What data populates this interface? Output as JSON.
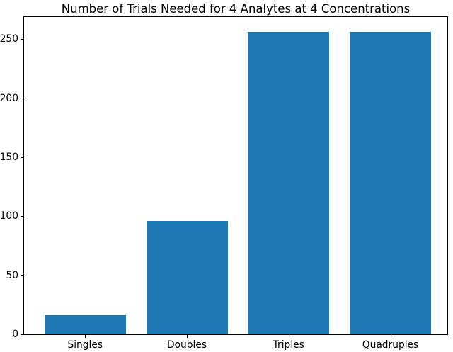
{
  "figure": {
    "background": "#ffffff"
  },
  "chart_data": {
    "type": "bar",
    "title": "Number of Trials Needed for 4 Analytes at 4 Concentrations",
    "categories": [
      "Singles",
      "Doubles",
      "Triples",
      "Quadruples"
    ],
    "values": [
      16,
      96,
      256,
      256
    ],
    "xlabel": "",
    "ylabel": "",
    "yticks": [
      0,
      50,
      100,
      150,
      200,
      250
    ],
    "ylim": [
      0,
      268.8
    ],
    "xlim": [
      -0.6,
      3.56
    ],
    "bar_width": 0.8,
    "bar_color": "#1f77b4",
    "axis_color": "#000000",
    "text_color": "#000000",
    "grid": false,
    "legend": "none"
  }
}
